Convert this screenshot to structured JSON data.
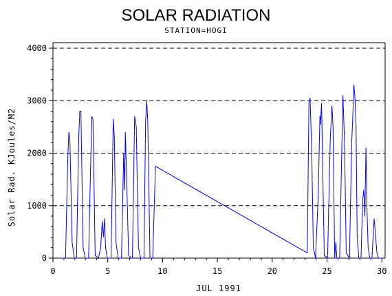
{
  "chart_data": {
    "type": "line",
    "title": "SOLAR RADIATION",
    "subtitle": "STATION=HOGI",
    "xlabel": "JUL 1991",
    "ylabel": "Solar Rad. KJoules/M2",
    "xlim": [
      0,
      30.3
    ],
    "ylim": [
      0,
      4000
    ],
    "xticks": [
      0,
      5,
      10,
      15,
      20,
      25,
      30
    ],
    "yticks": [
      0,
      1000,
      2000,
      3000,
      4000
    ],
    "grid": "horizontal-dashed",
    "colors": {
      "line": "#0000ff",
      "axis": "#000000",
      "grid": "#000000"
    },
    "series": [
      {
        "values": [
          [
            0.85,
            0
          ],
          [
            1.15,
            0
          ],
          [
            1.35,
            1900
          ],
          [
            1.45,
            2400
          ],
          [
            1.55,
            2200
          ],
          [
            1.75,
            300
          ],
          [
            1.95,
            0
          ],
          [
            2.15,
            0
          ],
          [
            2.35,
            2300
          ],
          [
            2.45,
            2800
          ],
          [
            2.55,
            2800
          ],
          [
            2.75,
            200
          ],
          [
            2.95,
            0
          ],
          [
            3.25,
            0
          ],
          [
            3.45,
            1900
          ],
          [
            3.55,
            2700
          ],
          [
            3.65,
            2650
          ],
          [
            3.85,
            50
          ],
          [
            4.15,
            0
          ],
          [
            4.35,
            200
          ],
          [
            4.5,
            700
          ],
          [
            4.6,
            400
          ],
          [
            4.7,
            750
          ],
          [
            4.8,
            200
          ],
          [
            4.95,
            0
          ],
          [
            5.3,
            0
          ],
          [
            5.5,
            2650
          ],
          [
            5.6,
            2300
          ],
          [
            5.75,
            300
          ],
          [
            5.95,
            0
          ],
          [
            6.25,
            0
          ],
          [
            6.45,
            2000
          ],
          [
            6.55,
            1300
          ],
          [
            6.6,
            2400
          ],
          [
            6.7,
            1700
          ],
          [
            6.9,
            50
          ],
          [
            7.15,
            0
          ],
          [
            7.25,
            0
          ],
          [
            7.45,
            2700
          ],
          [
            7.6,
            2500
          ],
          [
            7.8,
            200
          ],
          [
            8.0,
            0
          ],
          [
            8.3,
            0
          ],
          [
            8.45,
            2600
          ],
          [
            8.55,
            3000
          ],
          [
            8.65,
            2600
          ],
          [
            8.85,
            0
          ],
          [
            9.1,
            0
          ],
          [
            9.35,
            1750
          ],
          [
            23.2,
            100
          ],
          [
            23.35,
            2950
          ],
          [
            23.45,
            3050
          ],
          [
            23.6,
            2100
          ],
          [
            23.75,
            200
          ],
          [
            23.95,
            0
          ],
          [
            24.2,
            1200
          ],
          [
            24.35,
            2700
          ],
          [
            24.4,
            2550
          ],
          [
            24.5,
            2950
          ],
          [
            24.6,
            1800
          ],
          [
            24.75,
            50
          ],
          [
            25.05,
            0
          ],
          [
            25.3,
            2300
          ],
          [
            25.45,
            2900
          ],
          [
            25.55,
            2500
          ],
          [
            25.7,
            0
          ],
          [
            25.8,
            300
          ],
          [
            25.9,
            0
          ],
          [
            26.15,
            0
          ],
          [
            26.35,
            2100
          ],
          [
            26.45,
            3100
          ],
          [
            26.6,
            2200
          ],
          [
            26.75,
            100
          ],
          [
            27.05,
            0
          ],
          [
            27.25,
            2200
          ],
          [
            27.35,
            2700
          ],
          [
            27.45,
            3300
          ],
          [
            27.55,
            3050
          ],
          [
            27.65,
            2500
          ],
          [
            27.75,
            400
          ],
          [
            27.9,
            0
          ],
          [
            28.1,
            0
          ],
          [
            28.25,
            1100
          ],
          [
            28.35,
            1300
          ],
          [
            28.45,
            800
          ],
          [
            28.55,
            2100
          ],
          [
            28.65,
            900
          ],
          [
            28.75,
            200
          ],
          [
            28.9,
            0
          ],
          [
            29.1,
            0
          ],
          [
            29.2,
            400
          ],
          [
            29.3,
            750
          ],
          [
            29.4,
            500
          ],
          [
            29.55,
            100
          ],
          [
            29.7,
            0
          ],
          [
            30.0,
            0
          ]
        ]
      }
    ]
  }
}
